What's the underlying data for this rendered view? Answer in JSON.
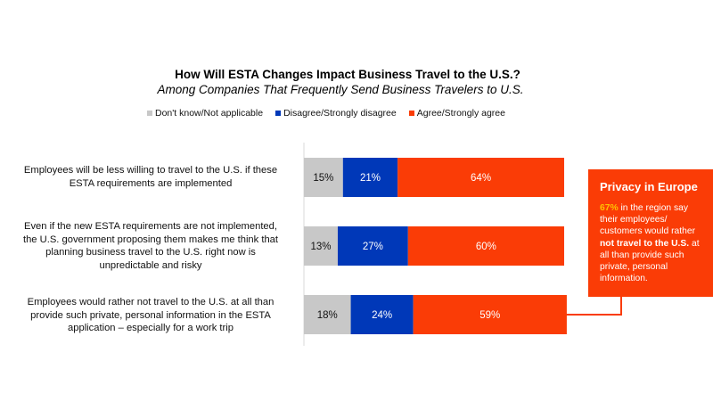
{
  "chart_data": {
    "type": "bar",
    "orientation": "horizontal",
    "stacked": true,
    "title": "How Will ESTA Changes Impact Business Travel to the U.S.?",
    "subtitle": "Among Companies That Frequently Send Business Travelers to U.S.",
    "xlabel": "",
    "ylabel": "",
    "xlim": [
      0,
      100
    ],
    "grid": false,
    "legend_position": "top",
    "categories": [
      "Employees will be less willing to travel to the U.S. if these ESTA requirements are implemented",
      "Even if the new ESTA requirements are not implemented, the U.S. government proposing them makes me think that planning business travel to the U.S. right now is unpredictable and risky",
      "Employees would rather not travel to the U.S. at all than provide such private, personal information in the ESTA application – especially for a work trip"
    ],
    "series": [
      {
        "name": "Don't know/Not applicable",
        "color": "#c8c8c8",
        "label_color": "#111111",
        "values": [
          15,
          13,
          18
        ]
      },
      {
        "name": "Disagree/Strongly disagree",
        "color": "#0038b8",
        "label_color": "#ffffff",
        "values": [
          21,
          27,
          24
        ]
      },
      {
        "name": "Agree/Strongly agree",
        "color": "#fa3c06",
        "label_color": "#ffffff",
        "values": [
          64,
          60,
          59
        ]
      }
    ],
    "annotations": [
      {
        "title": "Privacy in Europe",
        "highlight": "67%",
        "text_pre": " in the region say their employees/ customers would rather ",
        "text_bold": "not travel to the U.S.",
        "text_post": " at all than provide such private, personal information.",
        "linked_category_index": 2
      }
    ]
  },
  "category_label_lines": [
    [
      "Employees will be less willing to travel to the U.S. if these",
      "ESTA requirements are implemented"
    ],
    [
      "Even if the new ESTA requirements are not implemented,",
      "the U.S. government proposing them makes me think that",
      "planning business travel to the U.S. right now is",
      "unpredictable and risky"
    ],
    [
      "Employees would rather not travel to the U.S. at all than",
      "provide such private, personal information in the ESTA",
      "application – especially for a work trip"
    ]
  ],
  "colors": {
    "accent_orange": "#fa3c06",
    "blue": "#0038b8",
    "gray": "#c8c8c8",
    "highlight_yellow": "#ffc000"
  }
}
